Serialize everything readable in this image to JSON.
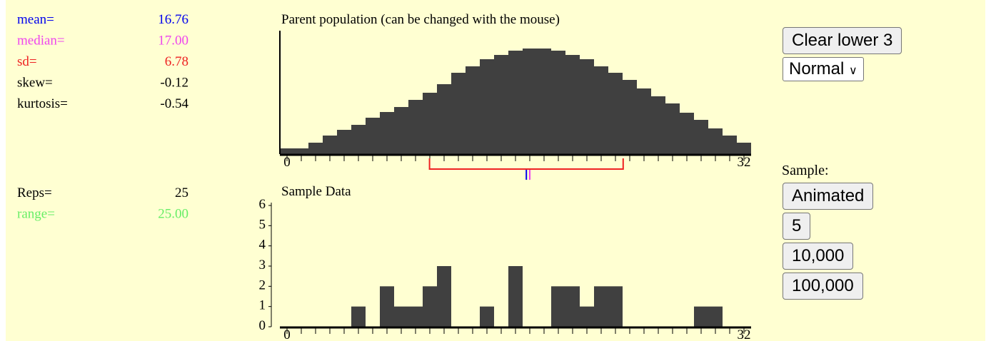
{
  "stats": [
    {
      "label": "mean=",
      "value": 16.76,
      "value_label": "16.76",
      "color": "#0000ee"
    },
    {
      "label": "median=",
      "value": 17,
      "value_label": "17.00",
      "color": "#ee44ee"
    },
    {
      "label": "sd=",
      "value": 6.78,
      "value_label": "6.78",
      "color": "#ee2222"
    },
    {
      "label": "skew=",
      "value": -0.12,
      "value_label": "-0.12",
      "color": "#000000"
    },
    {
      "label": "kurtosis=",
      "value": -0.54,
      "value_label": "-0.54",
      "color": "#000000"
    }
  ],
  "sample_stats": [
    {
      "label": "Reps=",
      "value": 25,
      "value_label": "25",
      "color": "#000000"
    },
    {
      "label": "range=",
      "value": 25,
      "value_label": "25.00",
      "color": "#66ee66"
    }
  ],
  "parent": {
    "type": "histogram",
    "title": "Parent population (can be changed with the mouse)",
    "values": [
      8,
      8,
      16,
      26,
      34,
      41,
      51,
      59,
      66,
      76,
      86,
      98,
      114,
      123,
      133,
      139,
      145,
      148,
      148,
      145,
      139,
      133,
      123,
      114,
      104,
      92,
      81,
      71,
      58,
      48,
      36,
      26,
      16
    ],
    "color": "#404040",
    "ylim": [
      0,
      171
    ],
    "xticks": [
      {
        "value": 0,
        "label": "0"
      },
      {
        "value": 32,
        "label": "32"
      }
    ],
    "minor_xticks": [
      0,
      1,
      2,
      3,
      4,
      5,
      6,
      7,
      8,
      9,
      10,
      11,
      12,
      13,
      14,
      15,
      16,
      17,
      18,
      19,
      20,
      21,
      22,
      23,
      24,
      25,
      26,
      27,
      28,
      29,
      30,
      31,
      32
    ]
  },
  "sample": {
    "type": "histogram",
    "title": "Sample Data",
    "values": [
      0,
      0,
      0,
      0,
      0,
      1,
      0,
      2,
      1,
      1,
      2,
      3,
      0,
      0,
      1,
      0,
      3,
      0,
      0,
      2,
      2,
      1,
      2,
      2,
      0,
      0,
      0,
      0,
      0,
      1,
      1,
      0,
      0
    ],
    "color": "#404040",
    "ylim": [
      0,
      6
    ],
    "yticks": [
      0,
      1,
      2,
      3,
      4,
      5,
      6
    ],
    "xticks": [
      {
        "value": 0,
        "label": "0"
      },
      {
        "value": 32,
        "label": "32"
      }
    ],
    "minor_xticks": [
      0,
      1,
      2,
      3,
      4,
      5,
      6,
      7,
      8,
      9,
      10,
      11,
      12,
      13,
      14,
      15,
      16,
      17,
      18,
      19,
      20,
      21,
      22,
      23,
      24,
      25,
      26,
      27,
      28,
      29,
      30,
      31,
      32
    ]
  },
  "controls": {
    "clear": "Clear lower 3",
    "distribution": "Normal",
    "sample_label": "Sample:",
    "sample_buttons": [
      "Animated",
      "5",
      "10,000",
      "100,000"
    ]
  }
}
